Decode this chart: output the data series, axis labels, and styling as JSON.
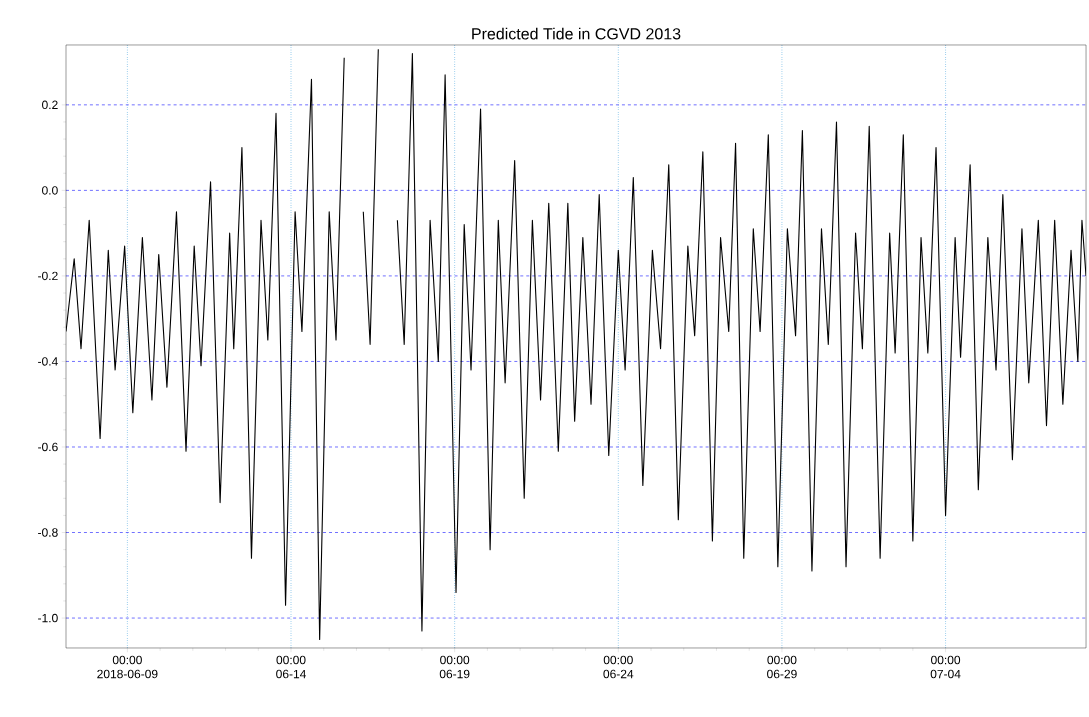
{
  "chart_data": {
    "type": "line",
    "title": "Predicted Tide in CGVD 2013",
    "x": [
      "2018-06-07T03:00",
      "2018-06-07T09:00",
      "2018-06-07T14:00",
      "2018-06-07T20:00",
      "2018-06-08T04:00",
      "2018-06-08T10:00",
      "2018-06-08T15:00",
      "2018-06-08T22:00",
      "2018-06-09T04:00",
      "2018-06-09T11:00",
      "2018-06-09T18:00",
      "2018-06-09T23:00",
      "2018-06-10T05:00",
      "2018-06-10T12:00",
      "2018-06-10T19:00",
      "2018-06-11T01:00",
      "2018-06-11T06:00",
      "2018-06-11T13:00",
      "2018-06-11T20:00",
      "2018-06-12T03:00",
      "2018-06-12T06:00",
      "2018-06-12T12:00",
      "2018-06-12T19:00",
      "2018-06-13T02:00",
      "2018-06-13T07:00",
      "2018-06-13T13:00",
      "2018-06-13T20:00",
      "2018-06-14T03:00",
      "2018-06-14T08:00",
      "2018-06-14T15:00",
      "2018-06-14T21:00",
      "2018-06-15T04:00",
      "2018-06-15T09:00",
      "2018-06-15T15:00",
      "2018-06-15T23:00",
      "2018-06-16T05:00",
      "2018-06-16T10:00",
      "2018-06-16T16:00",
      "2018-06-17T00:00",
      "2018-06-17T06:00",
      "2018-06-17T11:00",
      "2018-06-17T17:00",
      "2018-06-18T00:00",
      "2018-06-18T06:00",
      "2018-06-18T12:00",
      "2018-06-18T17:00",
      "2018-06-19T01:00",
      "2018-06-19T07:00",
      "2018-06-19T12:00",
      "2018-06-19T19:00",
      "2018-06-20T02:00",
      "2018-06-20T08:00",
      "2018-06-20T13:00",
      "2018-06-20T20:00",
      "2018-06-21T03:00",
      "2018-06-21T09:00",
      "2018-06-21T15:00",
      "2018-06-21T21:00",
      "2018-06-22T04:00",
      "2018-06-22T11:00",
      "2018-06-22T16:00",
      "2018-06-22T22:00",
      "2018-06-23T04:00",
      "2018-06-23T10:00",
      "2018-06-23T17:00",
      "2018-06-24T00:00",
      "2018-06-24T05:00",
      "2018-06-24T11:00",
      "2018-06-24T18:00",
      "2018-06-25T01:00",
      "2018-06-25T07:00",
      "2018-06-25T13:00",
      "2018-06-25T20:00",
      "2018-06-26T03:00",
      "2018-06-26T08:00",
      "2018-06-26T14:00",
      "2018-06-26T21:00",
      "2018-06-27T03:00",
      "2018-06-27T09:00",
      "2018-06-27T14:00",
      "2018-06-27T20:00",
      "2018-06-28T03:00",
      "2018-06-28T08:00",
      "2018-06-28T14:00",
      "2018-06-28T21:00",
      "2018-06-29T04:00",
      "2018-06-29T10:00",
      "2018-06-29T15:00",
      "2018-06-29T22:00",
      "2018-06-30T05:00",
      "2018-06-30T10:00",
      "2018-06-30T16:00",
      "2018-06-30T23:00",
      "2018-07-01T06:00",
      "2018-07-01T11:00",
      "2018-07-01T16:00",
      "2018-07-02T00:00",
      "2018-07-02T07:00",
      "2018-07-02T11:00",
      "2018-07-02T17:00",
      "2018-07-03T00:00",
      "2018-07-03T06:00",
      "2018-07-03T11:00",
      "2018-07-03T17:00",
      "2018-07-04T00:00",
      "2018-07-04T07:00",
      "2018-07-04T11:00",
      "2018-07-04T18:00",
      "2018-07-05T00:00",
      "2018-07-05T07:00",
      "2018-07-05T13:00",
      "2018-07-05T18:00",
      "2018-07-06T01:00",
      "2018-07-06T08:00",
      "2018-07-06T13:00",
      "2018-07-06T20:00",
      "2018-07-07T02:00",
      "2018-07-07T08:00",
      "2018-07-07T14:00",
      "2018-07-07T20:00",
      "2018-07-08T01:00",
      "2018-07-08T04:00",
      "2018-07-08T07:00"
    ],
    "values": [
      -0.33,
      -0.16,
      -0.37,
      -0.07,
      -0.58,
      -0.14,
      -0.42,
      -0.13,
      -0.52,
      -0.11,
      -0.49,
      -0.15,
      -0.46,
      -0.05,
      -0.61,
      -0.13,
      -0.41,
      0.02,
      -0.73,
      -0.1,
      -0.37,
      0.1,
      -0.86,
      -0.07,
      -0.35,
      0.18,
      -0.97,
      -0.05,
      -0.33,
      0.26,
      -1.05,
      -0.05,
      -0.35,
      0.31,
      null,
      -0.05,
      -0.36,
      0.33,
      null,
      -0.07,
      -0.36,
      0.32,
      -1.03,
      -0.07,
      -0.4,
      0.27,
      -0.94,
      -0.08,
      -0.42,
      0.19,
      -0.84,
      -0.07,
      -0.45,
      0.07,
      -0.72,
      -0.07,
      -0.49,
      -0.03,
      -0.61,
      -0.03,
      -0.54,
      -0.11,
      -0.5,
      -0.01,
      -0.62,
      -0.14,
      -0.42,
      0.03,
      -0.69,
      -0.14,
      -0.37,
      0.06,
      -0.77,
      -0.13,
      -0.34,
      0.09,
      -0.82,
      -0.11,
      -0.33,
      0.11,
      -0.86,
      -0.09,
      -0.33,
      0.13,
      -0.88,
      -0.09,
      -0.34,
      0.14,
      -0.89,
      -0.09,
      -0.36,
      0.16,
      -0.88,
      -0.1,
      -0.37,
      0.15,
      -0.86,
      -0.1,
      -0.38,
      0.13,
      -0.82,
      -0.11,
      -0.38,
      0.1,
      -0.76,
      -0.11,
      -0.39,
      0.06,
      -0.7,
      -0.11,
      -0.42,
      -0.01,
      -0.63,
      -0.09,
      -0.45,
      -0.07,
      -0.55,
      -0.07,
      -0.5,
      -0.14,
      -0.4,
      -0.07,
      -0.2
    ],
    "color": "#000000",
    "marker": "none",
    "line_style": "solid",
    "grid": true,
    "xlim": [
      "2018-06-07T03:00",
      "2018-07-08T07:00"
    ],
    "xticks": [
      {
        "value": "2018-06-09",
        "label": "00:00 2018-06-09"
      },
      {
        "value": "2018-06-14",
        "label": "00:00 06-14"
      },
      {
        "value": "2018-06-19",
        "label": "00:00 06-19"
      },
      {
        "value": "2018-06-24",
        "label": "00:00 06-24"
      },
      {
        "value": "2018-06-29",
        "label": "00:00 06-29"
      },
      {
        "value": "2018-07-04",
        "label": "00:00 07-04"
      }
    ],
    "ylim": [
      -1.07,
      0.34
    ],
    "yticks": [
      0.2,
      {
        "value": 0,
        "label": "0.0"
      },
      -0.2,
      -0.4,
      -0.6,
      -0.8,
      {
        "value": -1,
        "label": "-1.0"
      }
    ]
  }
}
